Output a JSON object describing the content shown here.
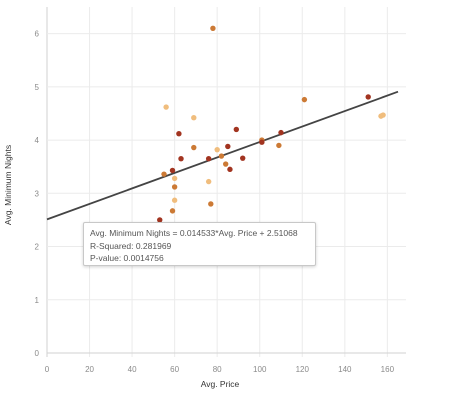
{
  "chart_data": {
    "type": "scatter",
    "xlabel": "Avg. Price",
    "ylabel": "Avg. Minimum Nights",
    "xlim": [
      0,
      165
    ],
    "ylim": [
      0,
      6.5
    ],
    "x_ticks": [
      "0",
      "20",
      "40",
      "60",
      "80",
      "100",
      "120",
      "140",
      "160"
    ],
    "y_ticks": [
      "0",
      "1",
      "2",
      "3",
      "4",
      "5",
      "6"
    ],
    "grid": true,
    "colors": {
      "dark_red": "#a23420",
      "medium_orange": "#cc7a35",
      "light_tan": "#f0bd7d",
      "trend_line": "#444444"
    },
    "points": [
      {
        "x": 78,
        "y": 6.1,
        "c": "medium_orange"
      },
      {
        "x": 56,
        "y": 4.62,
        "c": "light_tan"
      },
      {
        "x": 69,
        "y": 4.42,
        "c": "light_tan"
      },
      {
        "x": 62,
        "y": 4.12,
        "c": "dark_red"
      },
      {
        "x": 89,
        "y": 4.2,
        "c": "dark_red"
      },
      {
        "x": 121,
        "y": 4.76,
        "c": "medium_orange"
      },
      {
        "x": 151,
        "y": 4.81,
        "c": "dark_red"
      },
      {
        "x": 157,
        "y": 4.45,
        "c": "light_tan"
      },
      {
        "x": 158,
        "y": 4.47,
        "c": "light_tan"
      },
      {
        "x": 69,
        "y": 3.86,
        "c": "medium_orange"
      },
      {
        "x": 85,
        "y": 3.88,
        "c": "dark_red"
      },
      {
        "x": 101,
        "y": 4.0,
        "c": "medium_orange"
      },
      {
        "x": 101,
        "y": 3.96,
        "c": "dark_red"
      },
      {
        "x": 109,
        "y": 3.9,
        "c": "medium_orange"
      },
      {
        "x": 110,
        "y": 4.14,
        "c": "dark_red"
      },
      {
        "x": 63,
        "y": 3.65,
        "c": "dark_red"
      },
      {
        "x": 76,
        "y": 3.65,
        "c": "dark_red"
      },
      {
        "x": 80,
        "y": 3.82,
        "c": "light_tan"
      },
      {
        "x": 82,
        "y": 3.7,
        "c": "medium_orange"
      },
      {
        "x": 84,
        "y": 3.55,
        "c": "medium_orange"
      },
      {
        "x": 86,
        "y": 3.45,
        "c": "dark_red"
      },
      {
        "x": 92,
        "y": 3.66,
        "c": "dark_red"
      },
      {
        "x": 55,
        "y": 3.36,
        "c": "medium_orange"
      },
      {
        "x": 59,
        "y": 3.43,
        "c": "dark_red"
      },
      {
        "x": 60,
        "y": 3.28,
        "c": "light_tan"
      },
      {
        "x": 60,
        "y": 3.12,
        "c": "medium_orange"
      },
      {
        "x": 76,
        "y": 3.22,
        "c": "light_tan"
      },
      {
        "x": 60,
        "y": 2.87,
        "c": "light_tan"
      },
      {
        "x": 77,
        "y": 2.8,
        "c": "medium_orange"
      },
      {
        "x": 59,
        "y": 2.67,
        "c": "medium_orange"
      },
      {
        "x": 53,
        "y": 2.5,
        "c": "dark_red"
      }
    ],
    "trend_line": {
      "slope": 0.014533,
      "intercept": 2.51068
    },
    "tooltip": {
      "equation": "Avg. Minimum Nights = 0.014533*Avg. Price + 2.51068",
      "r_squared": "R-Squared: 0.281969",
      "p_value": "P-value: 0.0014756"
    }
  }
}
